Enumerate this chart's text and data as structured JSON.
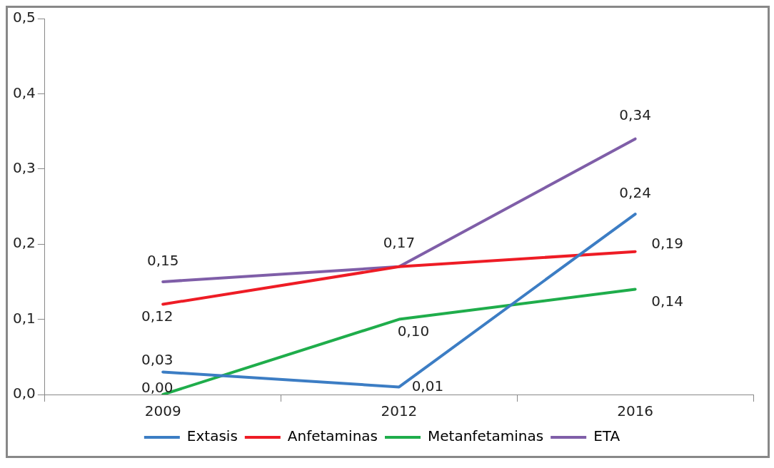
{
  "chart_data": {
    "type": "line",
    "categories": [
      "2009",
      "2012",
      "2016"
    ],
    "series": [
      {
        "name": "Extasis",
        "color": "#3c7dc4",
        "values": [
          0.03,
          0.01,
          0.24
        ],
        "value_labels": [
          "0,03",
          "0,01",
          "0,24"
        ]
      },
      {
        "name": "Anfetaminas",
        "color": "#ee1c25",
        "values": [
          0.12,
          0.17,
          0.19
        ],
        "value_labels": [
          "0,12",
          null,
          "0,19"
        ]
      },
      {
        "name": "Metanfetaminas",
        "color": "#1fad4b",
        "values": [
          0,
          0.1,
          0.14
        ],
        "value_labels": [
          "0,00",
          "0,10",
          "0,14"
        ]
      },
      {
        "name": "ETA",
        "color": "#7f5ea8",
        "values": [
          0.15,
          0.17,
          0.34
        ],
        "value_labels": [
          "0,15",
          "0,17",
          "0,34"
        ]
      }
    ],
    "ylim": [
      0,
      0.5
    ],
    "yticks": [
      {
        "value": 0,
        "label": "0,0"
      },
      {
        "value": 0.1,
        "label": "0,1"
      },
      {
        "value": 0.2,
        "label": "0,2"
      },
      {
        "value": 0.3,
        "label": "0,3"
      },
      {
        "value": 0.4,
        "label": "0,4"
      },
      {
        "value": 0.5,
        "label": "0,5"
      }
    ],
    "grid": false,
    "legend": "bottom",
    "marker": "none",
    "line_style": "solid"
  }
}
